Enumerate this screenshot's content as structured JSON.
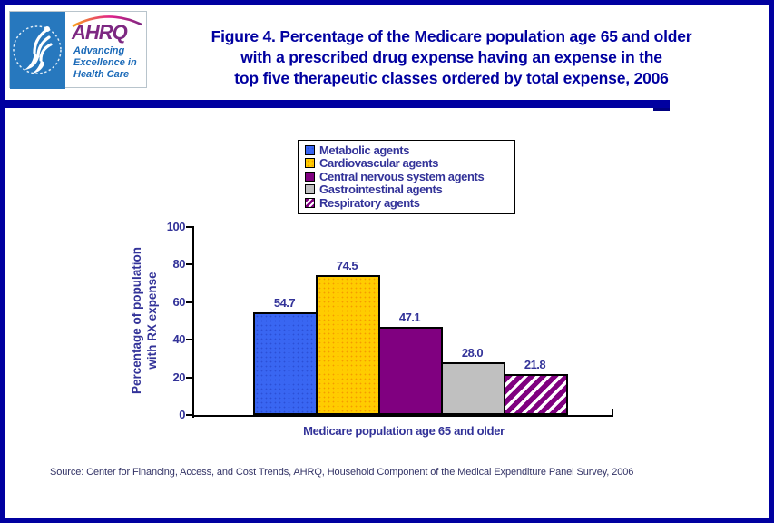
{
  "logo": {
    "hhs_seal": "hhs-eagle-seal",
    "ahrq_text": "AHRQ",
    "tagline_lines": [
      "Advancing",
      "Excellence in",
      "Health Care"
    ]
  },
  "title": {
    "lines": [
      "Figure 4. Percentage of the Medicare population age 65 and older",
      "with a prescribed drug expense having an expense in the",
      "top five therapeutic classes ordered by total expense, 2006"
    ]
  },
  "chart_data": {
    "type": "bar",
    "categories": [
      "Metabolic agents",
      "Cardiovascular agents",
      "Central nervous system agents",
      "Gastrointestinal agents",
      "Respiratory agents"
    ],
    "values": [
      54.7,
      74.5,
      47.1,
      28.0,
      21.8
    ],
    "value_labels": [
      "54.7",
      "74.5",
      "47.1",
      "28.0",
      "21.8"
    ],
    "series_styles": [
      {
        "fill": "#3966F2",
        "pattern": "dots",
        "dot": "#2B4FD6"
      },
      {
        "fill": "#FFCC00",
        "pattern": "dots",
        "dot": "#F59B00"
      },
      {
        "fill": "#800080",
        "pattern": "solid"
      },
      {
        "fill": "#C0C0C0",
        "pattern": "solid"
      },
      {
        "fill": "#FFFFFF",
        "pattern": "hatch",
        "hatch": "#800080"
      }
    ],
    "title": "",
    "xlabel": "Medicare population age 65 and older",
    "ylabel": "Percentage of population with RX expense",
    "ylabel_lines": [
      "Percentage of population",
      "with RX expense"
    ],
    "ylim": [
      0,
      100
    ],
    "yticks": [
      0,
      20,
      40,
      60,
      80,
      100
    ],
    "grid": false,
    "legend_position": "top-center"
  },
  "source": {
    "text": "Source: Center for Financing, Access, and Cost Trends, AHRQ, Household Component of the Medical Expenditure Panel Survey, 2006"
  },
  "colors": {
    "accent_navy": "#0000A0",
    "axis_text": "#333399",
    "source_text": "#333366",
    "hhs_blue": "#2778BE",
    "ahrq_purple": "#7D2882",
    "tagline_blue": "#1B6AB8"
  }
}
